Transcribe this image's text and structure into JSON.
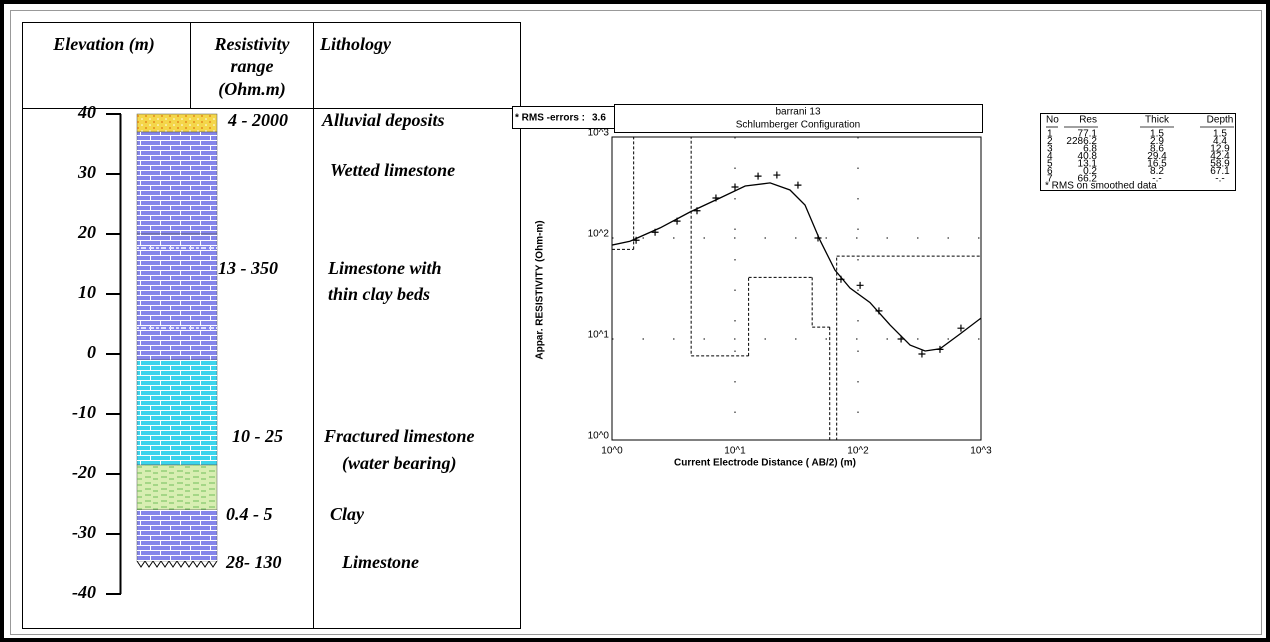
{
  "lithology_log": {
    "headers": {
      "elevation": "Elevation (m)",
      "resistivity": [
        "Resistivity",
        "range",
        "(Ohm.m)"
      ],
      "lithology": "Lithology"
    },
    "elevation_ticks": [
      40,
      30,
      20,
      10,
      0,
      -10,
      -20,
      -30,
      -40
    ],
    "layers": [
      {
        "top": 40,
        "bottom": 37,
        "fill": "dots",
        "color": "#f4d64a"
      },
      {
        "top": 37,
        "bottom": 20,
        "fill": "brick",
        "color": "#8585ea"
      },
      {
        "top": 20,
        "bottom": -1,
        "fill": "brick-clay",
        "color": "#8585ea"
      },
      {
        "top": -1,
        "bottom": -18.5,
        "fill": "brick",
        "color": "#3cd4ec"
      },
      {
        "top": -18.5,
        "bottom": -26,
        "fill": "dashes",
        "color": "#d8eeb2"
      },
      {
        "top": -26,
        "bottom": -34.5,
        "fill": "brick",
        "color": "#8585ea"
      }
    ],
    "resistivity_ranges": [
      "4 - 2000",
      "13 - 350",
      "10 - 25",
      "0.4 - 5",
      "28- 130"
    ],
    "lithology_texts": [
      "Alluvial deposits",
      "Wetted limestone",
      "Limestone with",
      "thin clay beds",
      "Fractured limestone",
      "(water bearing)",
      "Clay",
      "Limestone"
    ]
  },
  "chart_data": {
    "type": "sounding",
    "rms_label": "* RMS -errors :",
    "rms": 3.6,
    "title": "barrani  13",
    "subtitle": "Schlumberger  Configuration",
    "y_label": "Appar. RESISTIVITY (Ohm-m)",
    "x_label": "Current  Electrode  Distance  ( AB/2) (m)",
    "log_x": true,
    "log_y": true,
    "xlim": [
      1,
      1000
    ],
    "ylim": [
      1,
      1000
    ],
    "xticks": [
      {
        "value": 1,
        "label": "10^0"
      },
      {
        "value": 10,
        "label": "10^1"
      },
      {
        "value": 100,
        "label": "10^2"
      },
      {
        "value": 1000,
        "label": "10^3"
      }
    ],
    "yticks": [
      {
        "value": 1,
        "label": "10^0"
      },
      {
        "value": 10,
        "label": "10^1"
      },
      {
        "value": 100,
        "label": "10^2"
      },
      {
        "value": 1000,
        "label": "10^3"
      }
    ],
    "grid": true,
    "points": {
      "x": [
        1.57,
        2.24,
        3.38,
        4.91,
        7.0,
        10,
        15.4,
        21.9,
        32.5,
        47.3,
        72.7,
        104,
        148,
        224,
        331,
        464,
        687
      ],
      "y": [
        95,
        114,
        147,
        186,
        249,
        320,
        410,
        420,
        334,
        100,
        39,
        34,
        19,
        10,
        7.1,
        7.9,
        12.8
      ]
    },
    "curve": {
      "x": [
        1,
        1.4,
        2.46,
        4.31,
        7.55,
        12.1,
        19.3,
        28,
        37.1,
        49.1,
        65,
        86.1,
        125,
        182,
        265,
        351,
        464,
        675,
        1000
      ],
      "y": [
        85,
        93,
        126,
        181,
        249,
        327,
        351,
        299,
        212,
        95,
        48,
        32,
        23,
        13.8,
        8.7,
        7.6,
        8,
        11.2,
        16.1
      ]
    }
  },
  "model_table": {
    "headers": [
      "No",
      "Res",
      "Thick",
      "Depth"
    ],
    "rows": [
      [
        1,
        77.1,
        1.5,
        1.5
      ],
      [
        2,
        2286.2,
        2.9,
        4.4
      ],
      [
        3,
        6.8,
        8.6,
        12.9
      ],
      [
        4,
        40.8,
        29.4,
        42.4
      ],
      [
        5,
        13.1,
        16.5,
        58.9
      ],
      [
        6,
        0.2,
        8.2,
        67.1
      ],
      [
        7,
        66.2,
        "-.-",
        "-.-"
      ]
    ],
    "note": "* RMS on smoothed data"
  }
}
